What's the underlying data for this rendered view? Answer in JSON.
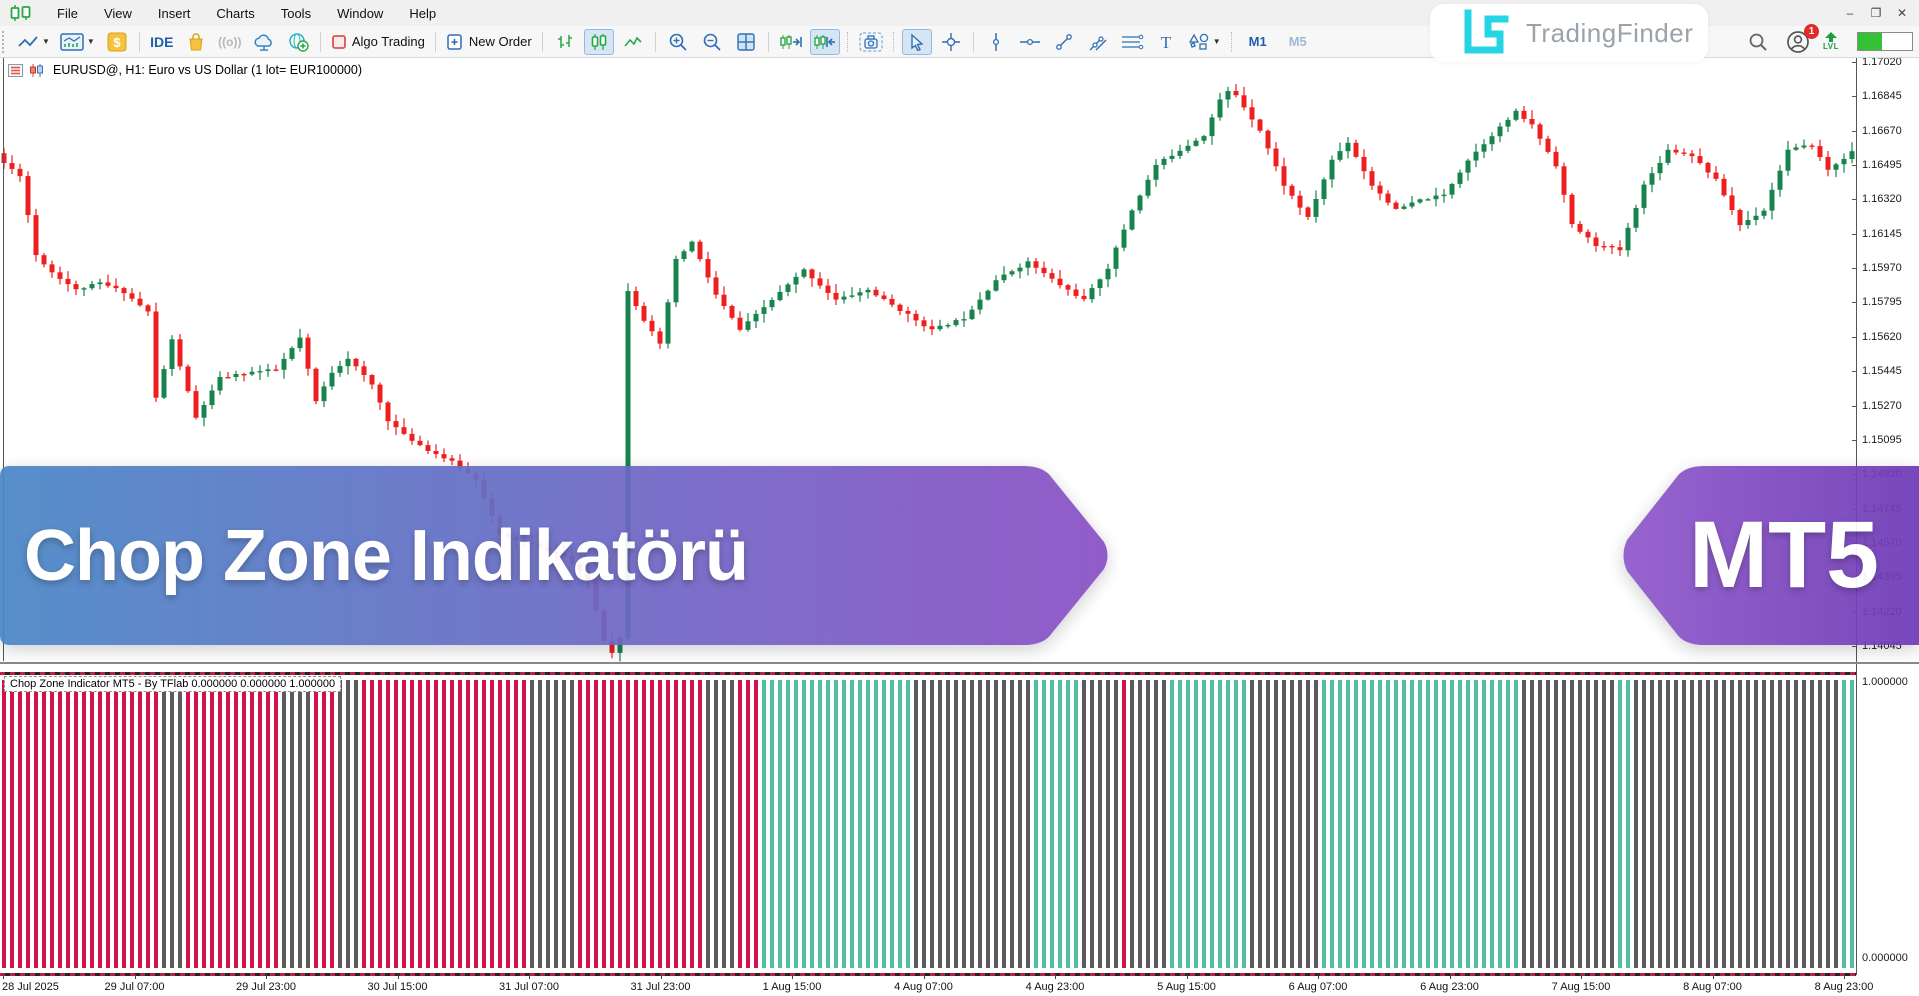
{
  "app": {
    "menu": [
      "File",
      "View",
      "Insert",
      "Charts",
      "Tools",
      "Window",
      "Help"
    ],
    "window_controls": {
      "minimize": "–",
      "restore": "❐",
      "close": "✕"
    }
  },
  "toolbar": {
    "ide_label": "IDE",
    "signals_glyph": "((o))",
    "algo_trading_label": "Algo Trading",
    "new_order_label": "New Order",
    "timeframe_active": "M1",
    "timeframe_faded": "M5",
    "lvl_label": "LVL",
    "notification_count": "1"
  },
  "logo": {
    "brand": "TradingFinder"
  },
  "chart": {
    "title": "EURUSD@, H1:  Euro vs US Dollar (1 lot= EUR100000)"
  },
  "indicator": {
    "label": "Chop Zone Indicator MT5 - By TFlab 0.000000 0.000000 1.000000",
    "scale_top": "1.000000",
    "scale_bottom": "0.000000"
  },
  "banners": {
    "left_text": "Chop Zone Indikatörü",
    "right_text": "MT5"
  },
  "chart_data": {
    "type": "candlestick",
    "symbol": "EURUSD",
    "timeframe": "H1",
    "title": "EURUSD@, H1:  Euro vs US Dollar (1 lot= EUR100000)",
    "y_max": 1.1702,
    "y_min": 1.14045,
    "tick_step": 0.00175,
    "price_ticks": [
      "1.17020",
      "1.16845",
      "1.16670",
      "1.16495",
      "1.16320",
      "1.16145",
      "1.15970",
      "1.15795",
      "1.15620",
      "1.15445",
      "1.15270",
      "1.15095",
      "1.14920",
      "1.14745",
      "1.14570",
      "1.14395",
      "1.14220",
      "1.14045"
    ],
    "time_ticks": [
      "28 Jul 2025",
      "29 Jul 07:00",
      "29 Jul 23:00",
      "30 Jul 15:00",
      "31 Jul 07:00",
      "31 Jul 23:00",
      "1 Aug 15:00",
      "4 Aug 07:00",
      "4 Aug 23:00",
      "5 Aug 15:00",
      "6 Aug 07:00",
      "6 Aug 23:00",
      "7 Aug 15:00",
      "8 Aug 07:00",
      "8 Aug 23:00"
    ],
    "bars": 232,
    "candle_up_color": "#17834d",
    "candle_down_color": "#ee1f1f",
    "close_anchors": [
      [
        0,
        1.16505
      ],
      [
        2,
        1.16444
      ],
      [
        4,
        1.16037
      ],
      [
        6,
        1.1595
      ],
      [
        9,
        1.15859
      ],
      [
        12,
        1.15894
      ],
      [
        15,
        1.15848
      ],
      [
        18,
        1.15747
      ],
      [
        19,
        1.15308
      ],
      [
        21,
        1.15604
      ],
      [
        24,
        1.15206
      ],
      [
        27,
        1.1541
      ],
      [
        31,
        1.15441
      ],
      [
        34,
        1.15451
      ],
      [
        37,
        1.15614
      ],
      [
        39,
        1.1529
      ],
      [
        41,
        1.1544
      ],
      [
        43,
        1.15512
      ],
      [
        46,
        1.15375
      ],
      [
        48,
        1.15196
      ],
      [
        50,
        1.1512
      ],
      [
        53,
        1.15044
      ],
      [
        56,
        1.14983
      ],
      [
        59,
        1.14896
      ],
      [
        62,
        1.14611
      ],
      [
        66,
        1.1456
      ],
      [
        70,
        1.14504
      ],
      [
        73,
        1.14381
      ],
      [
        75,
        1.14076
      ],
      [
        76,
        1.14015
      ],
      [
        77,
        1.14086
      ],
      [
        78,
        1.15859
      ],
      [
        80,
        1.15706
      ],
      [
        82,
        1.15579
      ],
      [
        84,
        1.16011
      ],
      [
        86,
        1.16103
      ],
      [
        89,
        1.15833
      ],
      [
        92,
        1.15655
      ],
      [
        96,
        1.15808
      ],
      [
        100,
        1.1596
      ],
      [
        104,
        1.15808
      ],
      [
        108,
        1.15859
      ],
      [
        112,
        1.15757
      ],
      [
        116,
        1.15655
      ],
      [
        120,
        1.15716
      ],
      [
        124,
        1.1591
      ],
      [
        128,
        1.16001
      ],
      [
        132,
        1.15884
      ],
      [
        135,
        1.15808
      ],
      [
        138,
        1.15971
      ],
      [
        141,
        1.16266
      ],
      [
        144,
        1.16495
      ],
      [
        147,
        1.16572
      ],
      [
        150,
        1.16648
      ],
      [
        152,
        1.16826
      ],
      [
        153,
        1.1687
      ],
      [
        154,
        1.16852
      ],
      [
        157,
        1.16673
      ],
      [
        160,
        1.16393
      ],
      [
        163,
        1.16225
      ],
      [
        166,
        1.16521
      ],
      [
        168,
        1.16612
      ],
      [
        171,
        1.16393
      ],
      [
        174,
        1.16266
      ],
      [
        177,
        1.16317
      ],
      [
        180,
        1.16342
      ],
      [
        183,
        1.16521
      ],
      [
        186,
        1.16648
      ],
      [
        189,
        1.16765
      ],
      [
        191,
        1.16699
      ],
      [
        194,
        1.16495
      ],
      [
        196,
        1.1619
      ],
      [
        199,
        1.16088
      ],
      [
        202,
        1.16062
      ],
      [
        205,
        1.16393
      ],
      [
        208,
        1.16572
      ],
      [
        211,
        1.16546
      ],
      [
        214,
        1.16419
      ],
      [
        217,
        1.1619
      ],
      [
        220,
        1.16266
      ],
      [
        223,
        1.16572
      ],
      [
        226,
        1.16597
      ],
      [
        228,
        1.1647
      ],
      [
        231,
        1.16561
      ]
    ],
    "chop_zone": {
      "indicator_name": "Chop Zone Indicator MT5 - By TFlab",
      "values_shown": [
        "0.000000",
        "0.000000",
        "1.000000"
      ],
      "value_range": [
        0,
        1
      ],
      "colors": {
        "red": "#d2124a",
        "teal": "#54bea1",
        "gray": "#5b5b5b"
      },
      "segments": [
        [
          0,
          19,
          "red"
        ],
        [
          20,
          22,
          "gray"
        ],
        [
          23,
          34,
          "red"
        ],
        [
          35,
          38,
          "gray"
        ],
        [
          39,
          41,
          "red"
        ],
        [
          42,
          44,
          "gray"
        ],
        [
          45,
          65,
          "red"
        ],
        [
          66,
          71,
          "gray"
        ],
        [
          72,
          87,
          "red"
        ],
        [
          88,
          91,
          "gray"
        ],
        [
          92,
          94,
          "red"
        ],
        [
          95,
          113,
          "teal"
        ],
        [
          114,
          128,
          "gray"
        ],
        [
          129,
          134,
          "teal"
        ],
        [
          135,
          139,
          "gray"
        ],
        [
          140,
          140,
          "red"
        ],
        [
          141,
          145,
          "gray"
        ],
        [
          146,
          155,
          "teal"
        ],
        [
          156,
          164,
          "gray"
        ],
        [
          165,
          189,
          "teal"
        ],
        [
          190,
          201,
          "gray"
        ],
        [
          202,
          203,
          "teal"
        ],
        [
          204,
          229,
          "gray"
        ],
        [
          230,
          231,
          "teal"
        ]
      ]
    }
  }
}
